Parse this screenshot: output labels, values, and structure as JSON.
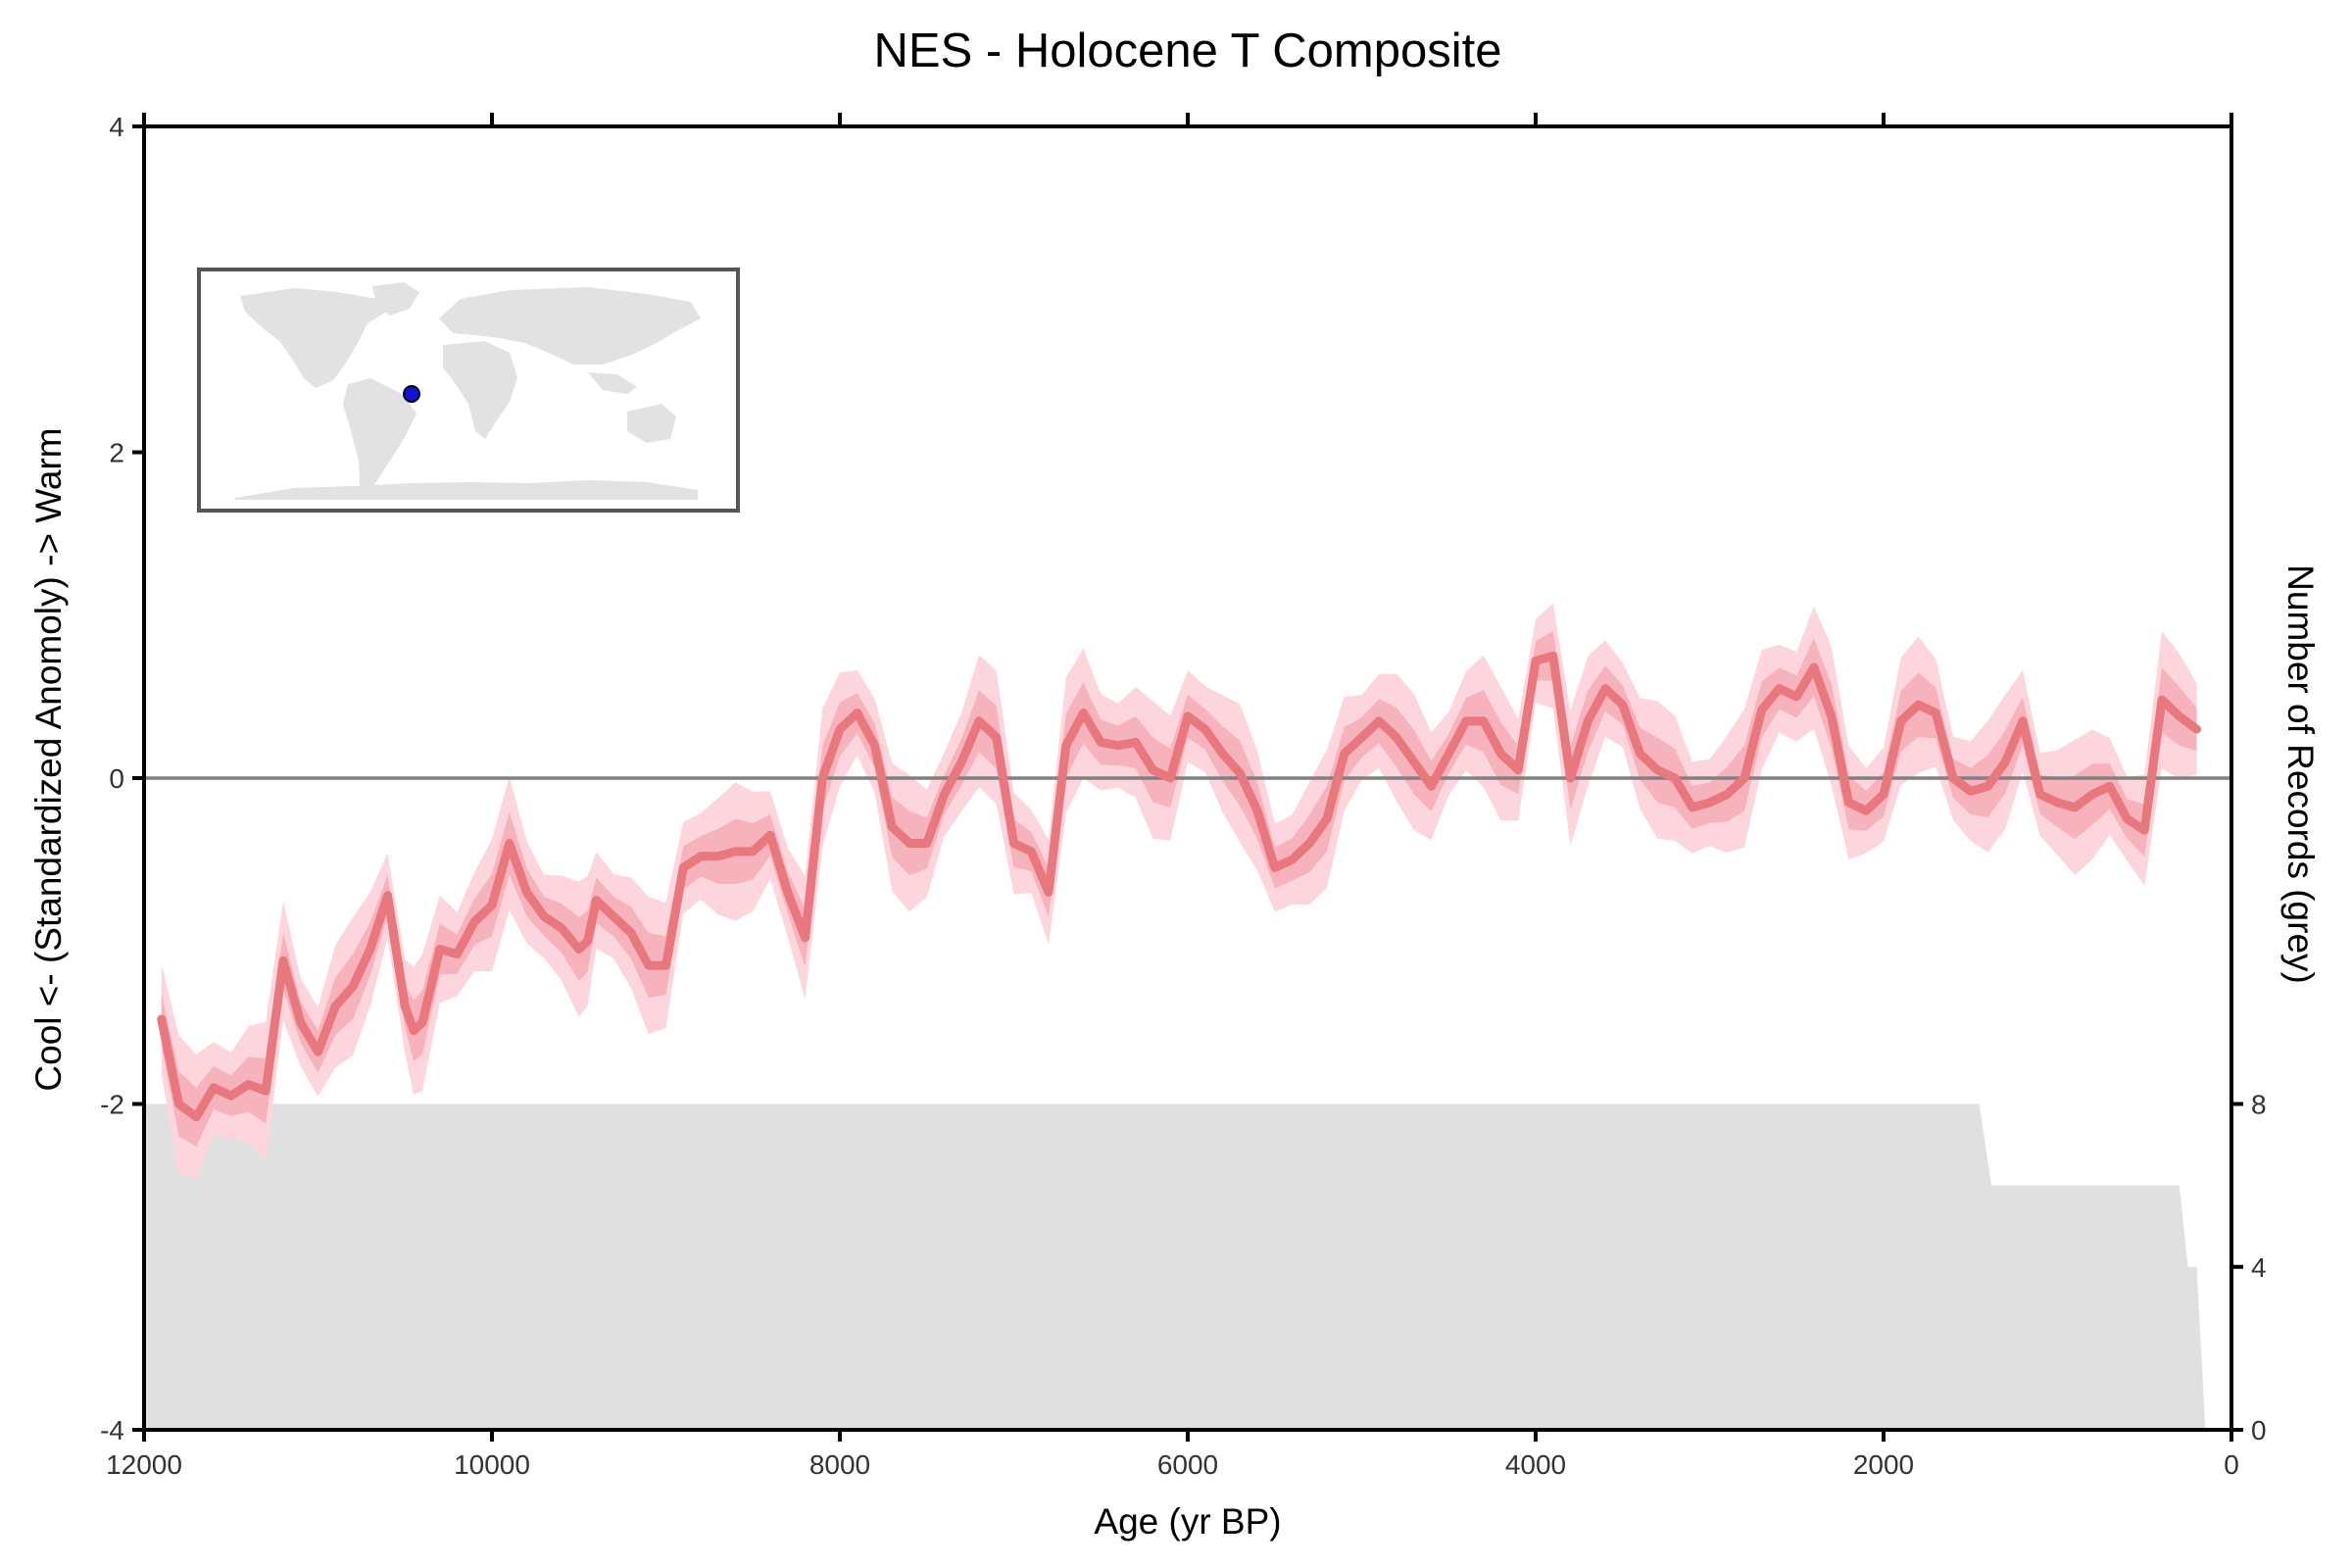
{
  "chart_data": {
    "type": "line",
    "title": "NES - Holocene T Composite",
    "xlabel": "Age (yr BP)",
    "ylabel": "Cool <- (Standardized Anomoly) -> Warm",
    "y2label": "Number of Records (grey)",
    "xlim": [
      12000,
      0
    ],
    "ylim": [
      -4,
      4
    ],
    "y2lim": [
      0,
      32
    ],
    "xticks": [
      12000,
      10000,
      8000,
      6000,
      4000,
      2000,
      0
    ],
    "yticks": [
      -4,
      -2,
      0,
      2,
      4
    ],
    "y2ticks": [
      0,
      4,
      8
    ],
    "zero_line": 0,
    "inset_map": {
      "marker_lon": -34,
      "marker_lat": 4,
      "marker_color": "#1010e0"
    },
    "colors": {
      "line": "#e8787e",
      "band_inner": "#f7b3bc",
      "band_outer": "#fdd5dc",
      "records": "#e0e0e0",
      "zero_line": "#808080"
    },
    "series": [
      {
        "x": [
          11900,
          11800,
          11700,
          11600,
          11500,
          11400,
          11300,
          11200,
          11100,
          11000,
          10900,
          10800,
          10700,
          10600,
          10500,
          10450,
          10400,
          10300,
          10200,
          10100,
          10000,
          9900,
          9800,
          9700,
          9600,
          9500,
          9450,
          9400,
          9300,
          9200,
          9100,
          9000,
          8900,
          8800,
          8700,
          8600,
          8500,
          8400,
          8300,
          8200,
          8100,
          8000,
          7900,
          7800,
          7700,
          7600,
          7500,
          7400,
          7300,
          7200,
          7100,
          7000,
          6900,
          6800,
          6700,
          6600,
          6500,
          6400,
          6300,
          6200,
          6100,
          6000,
          5900,
          5800,
          5700,
          5600,
          5500,
          5400,
          5300,
          5200,
          5100,
          5000,
          4900,
          4800,
          4700,
          4600,
          4500,
          4400,
          4300,
          4200,
          4100,
          4000,
          3900,
          3800,
          3700,
          3600,
          3500,
          3400,
          3300,
          3200,
          3100,
          3000,
          2900,
          2800,
          2700,
          2600,
          2500,
          2400,
          2300,
          2200,
          2100,
          2000,
          1900,
          1800,
          1700,
          1600,
          1500,
          1400,
          1300,
          1200,
          1100,
          1000,
          900,
          800,
          700,
          600,
          500,
          400,
          300,
          200
        ],
        "y": [
          -1.48,
          -2.0,
          -2.08,
          -1.9,
          -1.95,
          -1.88,
          -1.92,
          -1.12,
          -1.5,
          -1.68,
          -1.4,
          -1.28,
          -1.05,
          -0.72,
          -1.4,
          -1.55,
          -1.5,
          -1.05,
          -1.08,
          -0.88,
          -0.78,
          -0.4,
          -0.7,
          -0.85,
          -0.92,
          -1.05,
          -1.0,
          -0.75,
          -0.85,
          -0.95,
          -1.15,
          -1.15,
          -0.55,
          -0.48,
          -0.48,
          -0.45,
          -0.45,
          -0.35,
          -0.7,
          -0.98,
          0.0,
          0.3,
          0.4,
          0.2,
          -0.3,
          -0.4,
          -0.4,
          -0.1,
          0.1,
          0.35,
          0.25,
          -0.4,
          -0.45,
          -0.7,
          0.2,
          0.4,
          0.22,
          0.2,
          0.22,
          0.05,
          0.0,
          0.38,
          0.3,
          0.15,
          0.03,
          -0.2,
          -0.55,
          -0.5,
          -0.4,
          -0.25,
          0.15,
          0.25,
          0.35,
          0.25,
          0.1,
          -0.05,
          0.15,
          0.35,
          0.35,
          0.15,
          0.05,
          0.72,
          0.75,
          0.0,
          0.35,
          0.55,
          0.45,
          0.15,
          0.05,
          0.0,
          -0.18,
          -0.15,
          -0.1,
          0.0,
          0.42,
          0.55,
          0.5,
          0.68,
          0.38,
          -0.15,
          -0.2,
          -0.1,
          0.35,
          0.45,
          0.4,
          0.0,
          -0.08,
          -0.05,
          0.1,
          0.35,
          -0.1,
          -0.15,
          -0.18,
          -0.1,
          -0.05,
          -0.25,
          -0.32,
          0.48,
          0.38,
          0.3
        ]
      }
    ],
    "records_area": {
      "x": [
        11990,
        1450,
        1380,
        300,
        250,
        200,
        150,
        100
      ],
      "y": [
        8,
        8,
        6,
        6,
        4,
        4,
        0,
        0
      ]
    }
  }
}
